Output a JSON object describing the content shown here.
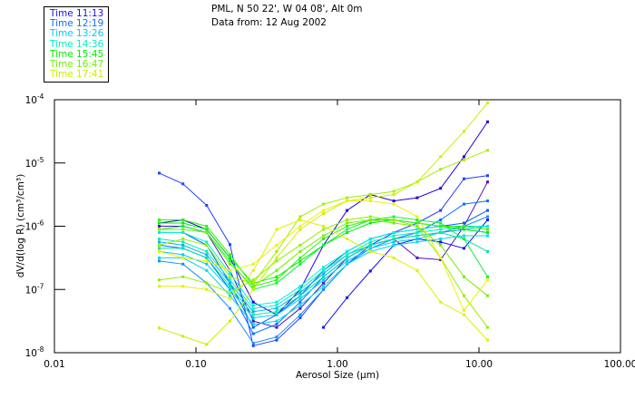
{
  "header": {
    "location": "PML, N 50 22', W 04 08', Alt 0m",
    "date": "Data from: 12 Aug 2002"
  },
  "legend": [
    {
      "label": "Time 11:13",
      "color": "#1a10f0"
    },
    {
      "label": "Time 12:19",
      "color": "#0a70ff"
    },
    {
      "label": "Time 13:26",
      "color": "#00c8ff"
    },
    {
      "label": "Time 14:36",
      "color": "#00f0c0"
    },
    {
      "label": "Time 15:45",
      "color": "#00f000"
    },
    {
      "label": "Time 16:47",
      "color": "#70f000"
    },
    {
      "label": "Time 17:41",
      "color": "#c8f000"
    }
  ],
  "chart_data": {
    "type": "line",
    "xscale": "log",
    "yscale": "log",
    "xlabel": "Aerosol Size (μm)",
    "ylabel": "dV/d(log R) (cm³/cm³)",
    "xlim": [
      0.01,
      100
    ],
    "ylim": [
      1e-08,
      0.0001
    ],
    "xticks": [
      {
        "v": 0.01,
        "label": "0.01"
      },
      {
        "v": 0.1,
        "label": "0.10"
      },
      {
        "v": 1,
        "label": "1.00"
      },
      {
        "v": 10,
        "label": "10.00"
      },
      {
        "v": 100,
        "label": "100.00"
      }
    ],
    "yticks": [
      {
        "exp": -4,
        "base": "10",
        "sup": "-4"
      },
      {
        "exp": -5,
        "base": "10",
        "sup": "-5"
      },
      {
        "exp": -6,
        "base": "10",
        "sup": "-6"
      },
      {
        "exp": -7,
        "base": "10",
        "sup": "-7"
      },
      {
        "exp": -8,
        "base": "10",
        "sup": "-8"
      }
    ],
    "x": [
      0.055,
      0.081,
      0.119,
      0.174,
      0.254,
      0.372,
      0.545,
      0.797,
      1.17,
      1.71,
      2.5,
      3.66,
      5.36,
      7.84,
      11.5
    ],
    "y_note": "series values are log10 of dV/d(log R)",
    "series": [
      {
        "group": "Time 11:13",
        "color": "#2000e0",
        "log10_values": [
          -5.95,
          -5.9,
          -6.05,
          -6.5,
          -7.2,
          -7.4,
          -7.0,
          -6.3,
          -5.75,
          -5.5,
          -5.6,
          -5.55,
          -5.4,
          -4.9,
          -4.35
        ]
      },
      {
        "group": "Time 11:13",
        "color": "#5010c0",
        "log10_values": [
          -6.0,
          -6.0,
          -6.1,
          -6.7,
          -7.5,
          -7.6,
          -7.3,
          -6.9,
          -6.5,
          -6.3,
          -6.2,
          -6.5,
          -6.53,
          -6.0,
          -5.3
        ]
      },
      {
        "group": "Time 11:13",
        "color": "#1010ff",
        "log10_values": [
          null,
          null,
          null,
          null,
          null,
          null,
          null,
          -7.6,
          -7.13,
          -6.71,
          -6.3,
          -6.2,
          -6.25,
          -6.35,
          -5.9
        ]
      },
      {
        "group": "Time 11:13",
        "color": "#2040ff",
        "log10_values": [
          -5.16,
          -5.33,
          -5.67,
          -6.29,
          -7.89,
          -7.8,
          -7.45,
          -7.0,
          -6.6,
          -6.3,
          -6.1,
          -5.95,
          -5.75,
          -5.25,
          -5.2
        ]
      },
      {
        "group": "Time 12:19",
        "color": "#0070ff",
        "log10_values": [
          -6.3,
          -6.35,
          -6.5,
          -7.0,
          -7.7,
          -7.55,
          -7.2,
          -6.8,
          -6.5,
          -6.3,
          -6.2,
          -6.1,
          -5.9,
          -5.65,
          -5.6
        ]
      },
      {
        "group": "Time 12:19",
        "color": "#1090ff",
        "log10_values": [
          -6.55,
          -6.6,
          -6.9,
          -7.3,
          -7.85,
          -7.75,
          -7.4,
          -7.0,
          -6.6,
          -6.35,
          -6.2,
          -6.15,
          -6.1,
          -6.0,
          -5.85
        ]
      },
      {
        "group": "Time 12:19",
        "color": "#0060f0",
        "log10_values": [
          -6.1,
          -6.1,
          -6.3,
          -6.9,
          -7.6,
          -7.4,
          -7.1,
          -6.7,
          -6.4,
          -6.2,
          -6.1,
          -6.05,
          -6.0,
          -5.95,
          -5.75
        ]
      },
      {
        "group": "Time 13:26",
        "color": "#00c8ff",
        "log10_values": [
          -6.4,
          -6.45,
          -6.6,
          -7.0,
          -7.45,
          -7.4,
          -7.15,
          -6.85,
          -6.55,
          -6.35,
          -6.25,
          -6.2,
          -6.1,
          -6.05,
          -6.0
        ]
      },
      {
        "group": "Time 13:26",
        "color": "#00b0f8",
        "log10_values": [
          -6.25,
          -6.3,
          -6.45,
          -6.9,
          -7.35,
          -7.3,
          -7.05,
          -6.75,
          -6.45,
          -6.3,
          -6.2,
          -6.15,
          -6.1,
          -6.05,
          -6.1
        ]
      },
      {
        "group": "Time 13:26",
        "color": "#00d8f0",
        "log10_values": [
          -6.5,
          -6.5,
          -6.7,
          -7.1,
          -7.55,
          -7.5,
          -7.25,
          -6.95,
          -6.6,
          -6.4,
          -6.3,
          -6.25,
          -6.2,
          -6.15,
          -6.15
        ]
      },
      {
        "group": "Time 14:36",
        "color": "#00f0c0",
        "log10_values": [
          -6.2,
          -6.25,
          -6.4,
          -6.85,
          -7.3,
          -7.25,
          -7.0,
          -6.7,
          -6.45,
          -6.25,
          -6.15,
          -6.1,
          -6.05,
          -6.0,
          -6.0
        ]
      },
      {
        "group": "Time 14:36",
        "color": "#00e8a0",
        "log10_values": [
          -6.35,
          -6.35,
          -6.5,
          -6.95,
          -7.4,
          -7.35,
          -7.1,
          -6.8,
          -6.5,
          -6.3,
          -6.2,
          -6.15,
          -6.1,
          -6.2,
          -6.4
        ]
      },
      {
        "group": "Time 14:36",
        "color": "#00f0d8",
        "log10_values": [
          -6.1,
          -6.1,
          -6.25,
          -6.75,
          -7.25,
          -7.2,
          -6.95,
          -6.65,
          -6.4,
          -6.2,
          -6.1,
          -6.05,
          -6.0,
          -6.05,
          -6.1
        ]
      },
      {
        "group": "Time 15:45",
        "color": "#00f000",
        "log10_values": [
          -5.95,
          -5.95,
          -6.05,
          -6.5,
          -6.9,
          -6.8,
          -6.55,
          -6.3,
          -6.1,
          -5.95,
          -5.9,
          -5.95,
          -6.0,
          -6.05,
          -6.1
        ]
      },
      {
        "group": "Time 15:45",
        "color": "#10f040",
        "log10_values": [
          -6.05,
          -6.0,
          -6.1,
          -6.55,
          -7.0,
          -6.9,
          -6.6,
          -6.3,
          -6.05,
          -5.9,
          -5.85,
          -5.9,
          -5.95,
          -6.2,
          -6.8
        ]
      },
      {
        "group": "Time 15:45",
        "color": "#30f010",
        "log10_values": [
          -5.9,
          -5.9,
          -6.0,
          -6.45,
          -6.95,
          -6.85,
          -6.5,
          -6.2,
          -6.0,
          -5.9,
          -5.9,
          -5.95,
          -6.0,
          -6.0,
          -6.05
        ]
      },
      {
        "group": "Time 16:47",
        "color": "#70f000",
        "log10_values": [
          -6.05,
          -6.05,
          -6.1,
          -6.6,
          -6.95,
          -6.7,
          -6.4,
          -6.15,
          -5.95,
          -5.9,
          -5.95,
          -6.0,
          -6.3,
          -6.8,
          -7.1
        ]
      },
      {
        "group": "Time 16:47",
        "color": "#90f000",
        "log10_values": [
          -6.85,
          -6.8,
          -6.9,
          -7.05,
          -6.85,
          -6.55,
          -6.3,
          -6.05,
          -5.9,
          -5.85,
          -5.9,
          -6.0,
          -6.5,
          -7.1,
          -7.6
        ]
      },
      {
        "group": "Time 16:47",
        "color": "#a0f000",
        "log10_values": [
          -6.3,
          -6.2,
          -6.3,
          -6.8,
          -6.9,
          -6.4,
          -5.85,
          -5.65,
          -5.55,
          -5.5,
          -5.45,
          -5.3,
          -5.1,
          -4.95,
          -4.8
        ]
      },
      {
        "group": "Time 17:41",
        "color": "#c8f000",
        "log10_values": [
          -7.61,
          -7.74,
          -7.87,
          -7.5,
          -7.0,
          -6.5,
          -6.05,
          -5.8,
          -5.6,
          -5.55,
          -5.5,
          -5.3,
          -4.9,
          -4.5,
          -4.05
        ]
      },
      {
        "group": "Time 17:41",
        "color": "#f0f000",
        "log10_values": [
          -6.4,
          -6.5,
          -6.55,
          -6.7,
          -6.6,
          -6.3,
          -6.0,
          -5.75,
          -5.6,
          -5.6,
          -5.65,
          -5.85,
          -6.5,
          -7.33,
          -6.85
        ]
      },
      {
        "group": "Time 17:41",
        "color": "#e0f000",
        "log10_values": [
          -6.95,
          -6.95,
          -7.0,
          -7.15,
          -6.7,
          -6.05,
          -5.9,
          -6.0,
          -6.2,
          -6.4,
          -6.5,
          -6.7,
          -7.2,
          -7.4,
          -7.8
        ]
      }
    ]
  }
}
